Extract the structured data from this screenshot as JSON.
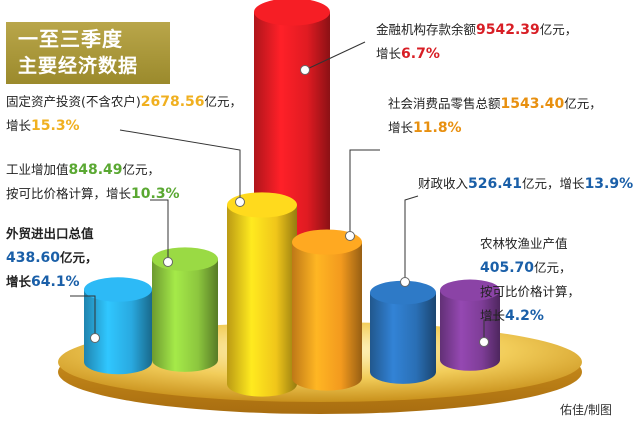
{
  "title": {
    "line1": "一至三季度",
    "line2": "主要经济数据"
  },
  "credit": "佑佳/制图",
  "annotations": [
    {
      "line1_pre": "金融机构存款余额",
      "value": "9542.39",
      "line1_post": "亿元，",
      "line2_pre": "增长",
      "growth": "6.7%",
      "line2_post": ""
    },
    {
      "line1_pre": "固定资产投资(不含农户)",
      "value": "2678.56",
      "line1_post": "亿元，",
      "line2_pre": "增长",
      "growth": "15.3%",
      "line2_post": ""
    },
    {
      "line1_pre": "社会消费品零售总额",
      "value": "1543.40",
      "line1_post": "亿元，",
      "line2_pre": "增长",
      "growth": "11.8%",
      "line2_post": ""
    },
    {
      "line1_pre": "工业增加值",
      "value": "848.49",
      "line1_post": "亿元，",
      "line2_pre": "按可比价格计算，增长",
      "growth": "10.3%",
      "line2_post": ""
    },
    {
      "line1_pre": "财政收入",
      "value": "526.41",
      "line1_post": "亿元，增长",
      "growth": "13.9%"
    },
    {
      "line1_pre": "外贸进出口总值",
      "value": "438.60",
      "line1_post": "亿元，",
      "line2_pre": "增长",
      "growth": "64.1%",
      "line2_post": ""
    },
    {
      "line1_pre": "农林牧渔业产值",
      "value": "405.70",
      "line1_post": "亿元，",
      "line2_pre": "按可比价格计算，",
      "line3_pre": "增长",
      "growth": "4.2%"
    }
  ],
  "chart_data": {
    "type": "bar",
    "categories": [
      "外贸进出口总值",
      "工业增加值",
      "固定资产投资(不含农户)",
      "金融机构存款余额",
      "社会消费品零售总额",
      "财政收入",
      "农林牧渔业产值"
    ],
    "series": [
      {
        "values": [
          438.6,
          848.49,
          2678.56,
          9542.39,
          1543.4,
          526.41,
          405.7
        ]
      }
    ],
    "growth_pct": [
      64.1,
      10.3,
      15.3,
      6.7,
      11.8,
      13.9,
      4.2
    ],
    "colors": [
      "#29a9e0",
      "#8cc63e",
      "#f0c61a",
      "#e01b22",
      "#f39a1e",
      "#2a6fb5",
      "#7e3d97"
    ],
    "value_color": "#1a5fa8",
    "growth_color": "#d81e25",
    "annotation_value_colors": [
      "#d81e25",
      "#f0b020",
      "#e89010",
      "#5aa832",
      "#1a5fa8",
      "#1a5fa8",
      "#1a5fa8"
    ]
  }
}
